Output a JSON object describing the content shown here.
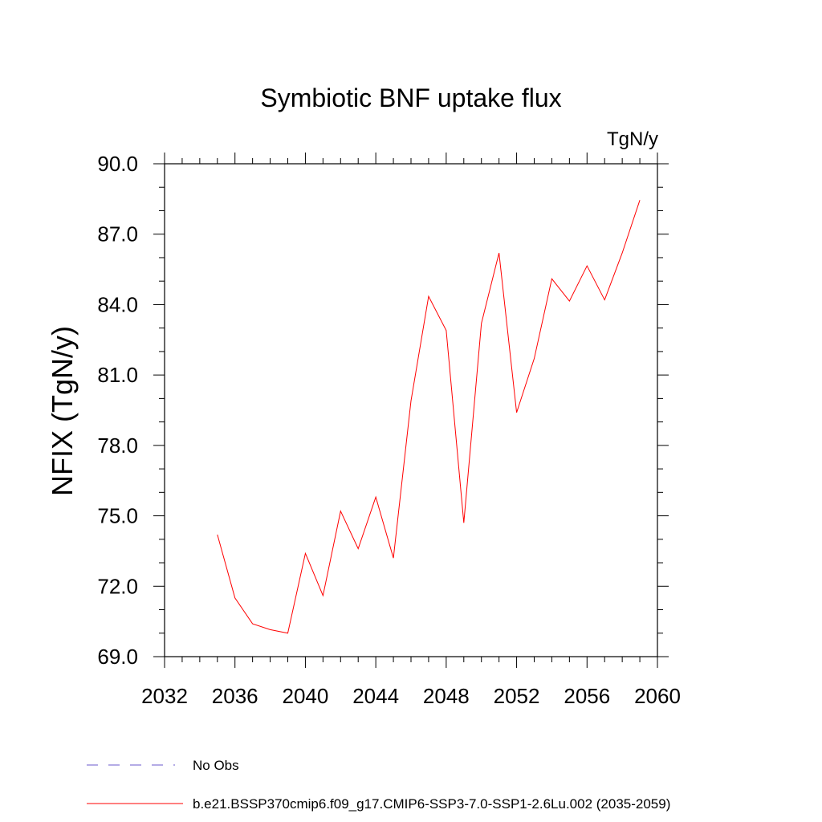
{
  "chart_data": {
    "type": "line",
    "title": "Symbiotic BNF uptake flux",
    "units": "TgN/y",
    "xlabel": "",
    "ylabel": "NFIX  (TgN/y)",
    "xlim": [
      2032,
      2060
    ],
    "ylim": [
      69.0,
      90.0
    ],
    "x_ticks": [
      "2032",
      "2036",
      "2040",
      "2044",
      "2048",
      "2052",
      "2056",
      "2060"
    ],
    "y_ticks": [
      "69.0",
      "72.0",
      "75.0",
      "78.0",
      "81.0",
      "84.0",
      "87.0",
      "90.0"
    ],
    "grid": false,
    "legend_position": "bottom-left",
    "series": [
      {
        "name": "b.e21.BSSP370cmip6.f09_g17.CMIP6-SSP3-7.0-SSP1-2.6Lu.002 (2035-2059)",
        "color": "#ff0000",
        "style": "solid",
        "x": [
          2035,
          2036,
          2037,
          2038,
          2039,
          2040,
          2041,
          2042,
          2043,
          2044,
          2045,
          2046,
          2047,
          2048,
          2049,
          2050,
          2051,
          2052,
          2053,
          2054,
          2055,
          2056,
          2057,
          2058,
          2059
        ],
        "y": [
          74.2,
          71.5,
          70.4,
          70.15,
          70.0,
          73.4,
          71.6,
          75.2,
          73.6,
          75.8,
          73.2,
          79.9,
          84.35,
          82.9,
          74.7,
          83.2,
          86.2,
          79.4,
          81.7,
          85.1,
          84.15,
          85.65,
          84.2,
          86.2,
          88.45
        ]
      }
    ],
    "legend": [
      {
        "label": "No Obs",
        "color": "#6a5acd",
        "style": "dashed"
      },
      {
        "label": "b.e21.BSSP370cmip6.f09_g17.CMIP6-SSP3-7.0-SSP1-2.6Lu.002 (2035-2059)",
        "color": "#ff0000",
        "style": "solid"
      }
    ]
  }
}
